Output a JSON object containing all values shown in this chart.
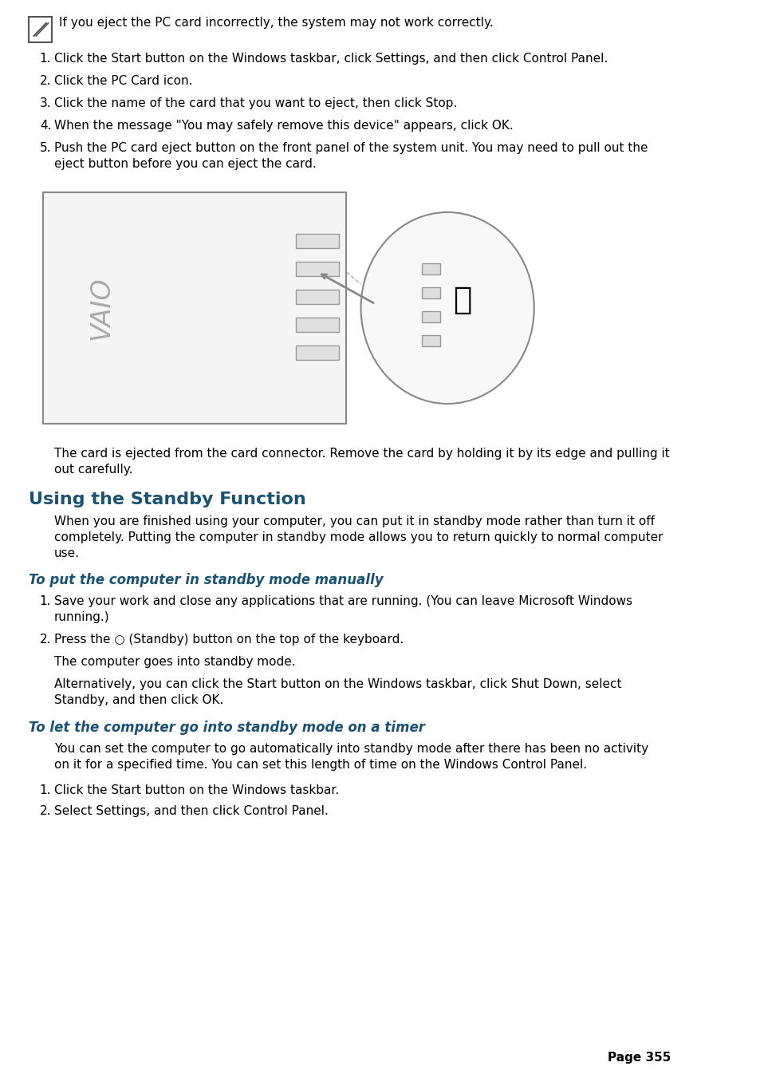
{
  "bg_color": "#ffffff",
  "text_color": "#000000",
  "heading_color": "#1a5276",
  "subheading_color": "#1a5276",
  "font_family": "DejaVu Sans",
  "page_number": "Page 355",
  "note_text": "If you eject the PC card incorrectly, the system may not work correctly.",
  "steps_before_image": [
    "Click the Start button on the Windows taskbar, click Settings, and then click Control Panel.",
    "Click the PC Card icon.",
    "Click the name of the card that you want to eject, then click Stop.",
    "When the message \"You may safely remove this device\" appears, click OK.",
    "Push the PC card eject button on the front panel of the system unit. You may need to pull out the\neject button before you can eject the card."
  ],
  "after_image_text": "The card is ejected from the card connector. Remove the card by holding it by its edge and pulling it\nout carefully.",
  "section_heading": "Using the Standby Function",
  "section_body": "When you are finished using your computer, you can put it in standby mode rather than turn it off\ncompletely. Putting the computer in standby mode allows you to return quickly to normal computer\nuse.",
  "subsection1_heading": "To put the computer in standby mode manually",
  "subsection1_steps": [
    "Save your work and close any applications that are running. (You can leave Microsoft Windows\nrunning.)",
    "Press the ○ (Standby) button on the top of the keyboard.\n\nThe computer goes into standby mode.\n\nAlternatively, you can click the Start button on the Windows taskbar, click Shut Down, select\nStandby, and then click OK."
  ],
  "subsection2_heading": "To let the computer go into standby mode on a timer",
  "subsection2_body": "You can set the computer to go automatically into standby mode after there has been no activity\non it for a specified time. You can set this length of time on the Windows Control Panel.",
  "subsection2_steps": [
    "Click the Start button on the Windows taskbar.",
    "Select Settings, and then click Control Panel."
  ]
}
